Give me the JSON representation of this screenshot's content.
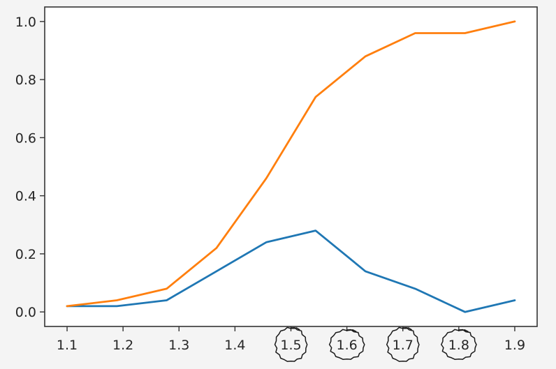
{
  "chart_data": {
    "type": "line",
    "title": "",
    "xlabel": "",
    "ylabel": "",
    "xlim": [
      1.06,
      1.94
    ],
    "ylim": [
      -0.05,
      1.05
    ],
    "xticks": [
      1.1,
      1.2,
      1.3,
      1.4,
      1.5,
      1.6,
      1.7,
      1.8,
      1.9
    ],
    "xtick_labels": [
      "1.1",
      "1.2",
      "1.3",
      "1.4",
      "1.5",
      "1.6",
      "1.7",
      "1.8",
      "1.9"
    ],
    "yticks": [
      0.0,
      0.2,
      0.4,
      0.6,
      0.8,
      1.0
    ],
    "ytick_labels": [
      "0.0",
      "0.2",
      "0.4",
      "0.6",
      "0.8",
      "1.0"
    ],
    "grid": false,
    "legend": "none",
    "x": [
      1.1,
      1.189,
      1.278,
      1.367,
      1.456,
      1.544,
      1.633,
      1.722,
      1.811,
      1.9
    ],
    "series": [
      {
        "color": "#1f77b4",
        "values": [
          0.02,
          0.02,
          0.04,
          0.14,
          0.24,
          0.28,
          0.14,
          0.08,
          0.0,
          0.04
        ]
      },
      {
        "color": "#ff7f0e",
        "values": [
          0.02,
          0.04,
          0.08,
          0.22,
          0.46,
          0.74,
          0.88,
          0.96,
          0.96,
          1.0
        ]
      }
    ],
    "annotations": {
      "hand_drawn_circles_around_ticks": [
        "1.5",
        "1.6",
        "1.7",
        "1.8"
      ]
    }
  }
}
